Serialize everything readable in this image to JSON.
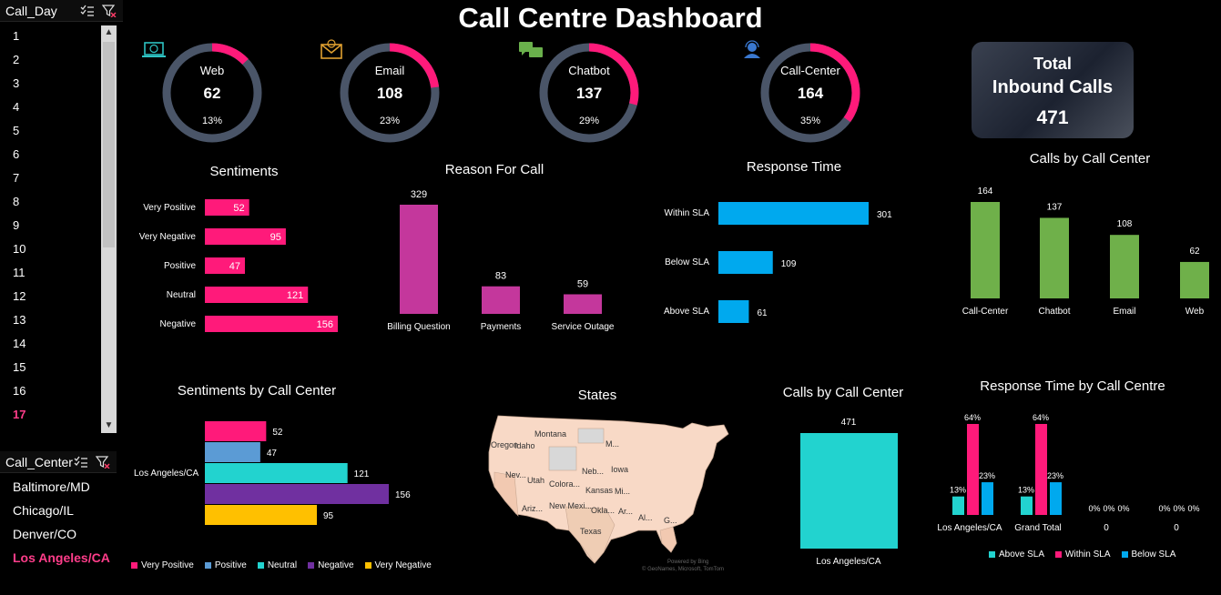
{
  "dashboard": {
    "title": "Call Centre Dashboard"
  },
  "slicers": {
    "call_day": {
      "title": "Call_Day",
      "items": [
        "1",
        "2",
        "3",
        "4",
        "5",
        "6",
        "7",
        "8",
        "9",
        "10",
        "11",
        "12",
        "13",
        "14",
        "15",
        "16",
        "17"
      ],
      "selected": "17"
    },
    "call_center": {
      "title": "Call_Center",
      "items": [
        "Baltimore/MD",
        "Chicago/IL",
        "Denver/CO",
        "Los Angeles/CA"
      ],
      "selected": "Los Angeles/CA"
    }
  },
  "channels": [
    {
      "name": "Web",
      "value": "62",
      "pct": "13%",
      "fraction": 0.13,
      "icon": "laptop-icon",
      "color": "#2ec4c4"
    },
    {
      "name": "Email",
      "value": "108",
      "pct": "23%",
      "fraction": 0.23,
      "icon": "email-icon",
      "color": "#e0a030"
    },
    {
      "name": "Chatbot",
      "value": "137",
      "pct": "29%",
      "fraction": 0.29,
      "icon": "chat-icon",
      "color": "#6ab04c"
    },
    {
      "name": "Call-Center",
      "value": "164",
      "pct": "35%",
      "fraction": 0.35,
      "icon": "headset-icon",
      "color": "#3a78d0"
    }
  ],
  "total_card": {
    "line1": "Total",
    "line2": "Inbound Calls",
    "value": "471"
  },
  "sections": {
    "sentiments": "Sentiments",
    "reason": "Reason For Call",
    "response": "Response Time",
    "calls_by_center_top": "Calls by Call Center",
    "sentiments_by_center": "Sentiments by Call Center",
    "states": "States",
    "calls_by_center_bottom": "Calls by Call Center",
    "response_by_centre": "Response Time by Call Centre"
  },
  "colors": {
    "pink": "#ff1a7a",
    "magenta": "#c4379c",
    "blue": "#00a9ee",
    "green": "#6fb04a",
    "teal": "#22d3cf",
    "ring_bg": "#4a5568",
    "purple": "#7030a0",
    "lightblue": "#5b9bd5",
    "amber": "#ffc000"
  },
  "chart_data": [
    {
      "id": "sentiments",
      "type": "bar",
      "orientation": "horizontal",
      "categories": [
        "Very Positive",
        "Very Negative",
        "Positive",
        "Neutral",
        "Negative"
      ],
      "values": [
        52,
        95,
        47,
        121,
        156
      ]
    },
    {
      "id": "reason",
      "type": "bar",
      "categories": [
        "Billing Question",
        "Payments",
        "Service Outage"
      ],
      "values": [
        329,
        83,
        59
      ]
    },
    {
      "id": "response",
      "type": "bar",
      "orientation": "horizontal",
      "categories": [
        "Within SLA",
        "Below SLA",
        "Above SLA"
      ],
      "values": [
        301,
        109,
        61
      ]
    },
    {
      "id": "calls_by_center",
      "type": "bar",
      "categories": [
        "Call-Center",
        "Chatbot",
        "Email",
        "Web"
      ],
      "values": [
        164,
        137,
        108,
        62
      ]
    },
    {
      "id": "sentiments_by_center",
      "type": "bar",
      "orientation": "horizontal",
      "categories": [
        "Los Angeles/CA"
      ],
      "series": [
        {
          "name": "Very Positive",
          "values": [
            52
          ]
        },
        {
          "name": "Positive",
          "values": [
            47
          ]
        },
        {
          "name": "Neutral",
          "values": [
            121
          ]
        },
        {
          "name": "Negative",
          "values": [
            156
          ]
        },
        {
          "name": "Very Negative",
          "values": [
            95
          ]
        }
      ]
    },
    {
      "id": "calls_by_center_single",
      "type": "bar",
      "categories": [
        "Los Angeles/CA"
      ],
      "values": [
        471
      ]
    },
    {
      "id": "response_by_centre",
      "type": "bar",
      "categories": [
        "Los Angeles/CA",
        "Grand Total",
        "0",
        "0"
      ],
      "series": [
        {
          "name": "Above SLA",
          "values": [
            0.13,
            0.13,
            0,
            0
          ],
          "labels": [
            "13%",
            "13%",
            "0%",
            "0%"
          ]
        },
        {
          "name": "Within SLA",
          "values": [
            0.64,
            0.64,
            0,
            0
          ],
          "labels": [
            "64%",
            "64%",
            "0%",
            "0%"
          ]
        },
        {
          "name": "Below SLA",
          "values": [
            0.23,
            0.23,
            0,
            0
          ],
          "labels": [
            "23%",
            "23%",
            "0%",
            "0%"
          ]
        }
      ]
    }
  ],
  "map": {
    "labels": [
      "Montana",
      "Oregon",
      "Idaho",
      "Nev...",
      "Utah",
      "Colora...",
      "Neb...",
      "Iowa",
      "Kansas",
      "Mi...",
      "Ariz...",
      "New Mexi...",
      "Okla...",
      "Texas",
      "Ar...",
      "Al...",
      "G...",
      "M..."
    ],
    "attribution1": "Powered by Bing",
    "attribution2": "© GeoNames, Microsoft, TomTom"
  }
}
